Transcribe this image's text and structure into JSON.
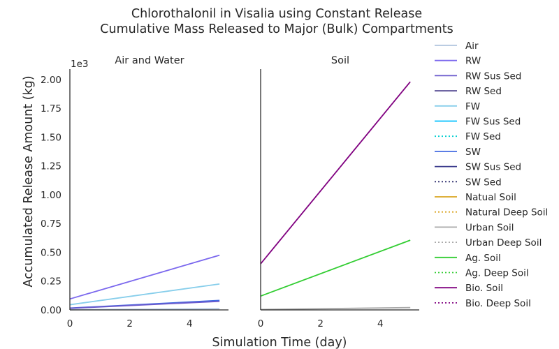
{
  "chart_data": {
    "type": "line",
    "title": "Chlorothalonil in Visalia using Constant Release",
    "subtitle": "Cumulative Mass Released to Major (Bulk) Compartments",
    "xlabel": "Simulation Time (day)",
    "ylabel": "Accumulated Release Amount (kg)",
    "y_multiplier": "1e3",
    "grid": false,
    "legend_position": "right",
    "panels": [
      {
        "title": "Air and Water",
        "xlim": [
          0,
          5.3
        ],
        "ylim": [
          0,
          2.09
        ],
        "xticks": [
          "0",
          "2",
          "4"
        ],
        "yticks": [
          "0.00",
          "0.25",
          "0.50",
          "0.75",
          "1.00",
          "1.25",
          "1.50",
          "1.75",
          "2.00"
        ],
        "series": [
          {
            "name": "RW",
            "color": "#7b68ee",
            "style": "solid",
            "x": [
              0,
              5
            ],
            "y": [
              0.095,
              0.475
            ]
          },
          {
            "name": "FW",
            "color": "#87ceeb",
            "style": "solid",
            "x": [
              0,
              5
            ],
            "y": [
              0.045,
              0.225
            ]
          },
          {
            "name": "SW",
            "color": "#4169e1",
            "style": "solid",
            "x": [
              0,
              5
            ],
            "y": [
              0.016,
              0.082
            ]
          },
          {
            "name": "RW Sus Sed",
            "color": "#6a5acd",
            "style": "solid",
            "x": [
              0,
              5
            ],
            "y": [
              0.014,
              0.074
            ]
          },
          {
            "name": "Air",
            "color": "#b0c4de",
            "style": "solid",
            "x": [
              0,
              5
            ],
            "y": [
              0.002,
              0.01
            ]
          }
        ]
      },
      {
        "title": "Soil",
        "xlim": [
          0,
          5.3
        ],
        "ylim": [
          0,
          2.09
        ],
        "xticks": [
          "0",
          "2",
          "4"
        ],
        "series": [
          {
            "name": "Bio. Soil",
            "color": "#800080",
            "style": "solid",
            "x": [
              0,
              5
            ],
            "y": [
              0.4,
              1.98
            ]
          },
          {
            "name": "Ag. Soil",
            "color": "#32cd32",
            "style": "solid",
            "x": [
              0,
              5
            ],
            "y": [
              0.12,
              0.605
            ]
          },
          {
            "name": "Urban Soil",
            "color": "#a9a9a9",
            "style": "solid",
            "x": [
              0,
              5
            ],
            "y": [
              0.004,
              0.02
            ]
          }
        ]
      }
    ],
    "legend": [
      {
        "name": "Air",
        "color": "#b0c4de",
        "style": "solid"
      },
      {
        "name": "RW",
        "color": "#7b68ee",
        "style": "solid"
      },
      {
        "name": "RW Sus Sed",
        "color": "#6a5acd",
        "style": "solid"
      },
      {
        "name": "RW Sed",
        "color": "#483d8b",
        "style": "solid"
      },
      {
        "name": "FW",
        "color": "#87ceeb",
        "style": "solid"
      },
      {
        "name": "FW Sus Sed",
        "color": "#00bfff",
        "style": "solid"
      },
      {
        "name": "FW Sed",
        "color": "#00ced1",
        "style": "dotted"
      },
      {
        "name": "SW",
        "color": "#4169e1",
        "style": "solid"
      },
      {
        "name": "SW Sus Sed",
        "color": "#3a3a8c",
        "style": "solid"
      },
      {
        "name": "SW Sed",
        "color": "#2f2f6f",
        "style": "dotted"
      },
      {
        "name": "Natual Soil",
        "color": "#daa520",
        "style": "solid"
      },
      {
        "name": "Natural Deep Soil",
        "color": "#daa520",
        "style": "dotted"
      },
      {
        "name": "Urban Soil",
        "color": "#a9a9a9",
        "style": "solid"
      },
      {
        "name": "Urban Deep Soil",
        "color": "#a9a9a9",
        "style": "dotted"
      },
      {
        "name": "Ag. Soil",
        "color": "#32cd32",
        "style": "solid"
      },
      {
        "name": "Ag. Deep Soil",
        "color": "#32cd32",
        "style": "dotted"
      },
      {
        "name": "Bio. Soil",
        "color": "#800080",
        "style": "solid"
      },
      {
        "name": "Bio. Deep Soil",
        "color": "#800080",
        "style": "dotted"
      }
    ]
  }
}
